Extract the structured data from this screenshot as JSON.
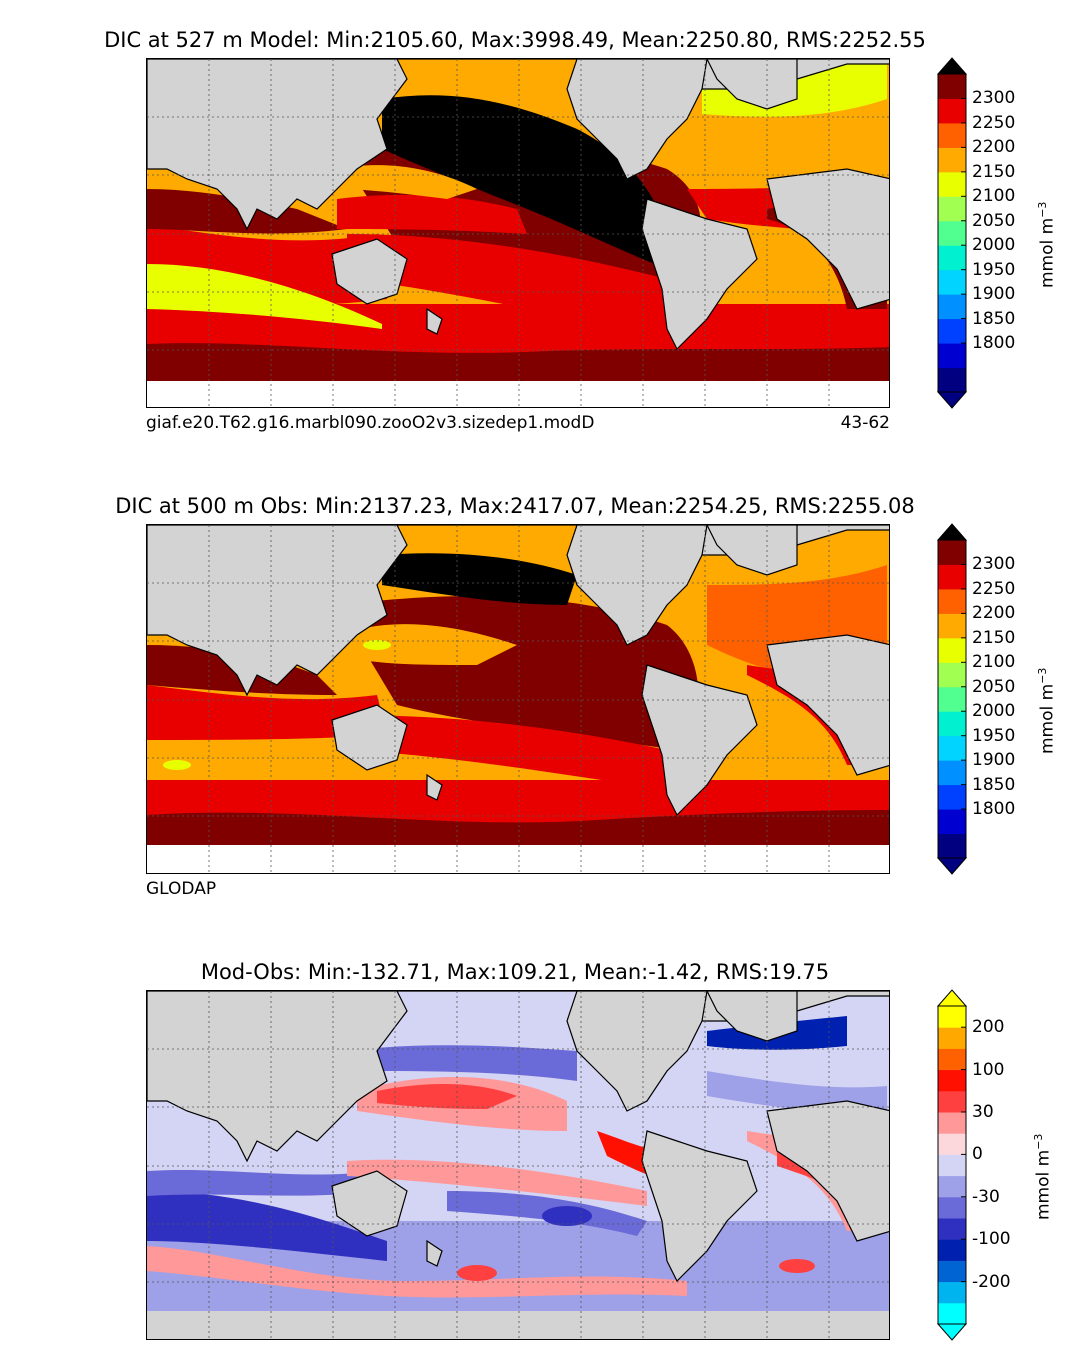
{
  "panels": [
    {
      "title": "DIC at 527 m Model: Min:2105.60, Max:3998.49, Mean:2250.80, RMS:2252.55",
      "caption_left": "giaf.e20.T62.g16.marbl090.zooO2v3.sizedep1.modD",
      "caption_right": "43-62"
    },
    {
      "title": "DIC at 500 m Obs: Min:2137.23, Max:2417.07, Mean:2254.25, RMS:2255.08",
      "caption_left": "GLODAP"
    },
    {
      "title": "Mod-Obs: Min:-132.71, Max:109.21, Mean:-1.42, RMS:19.75"
    }
  ],
  "colorbars": {
    "dic": {
      "label": "mmol m",
      "label_sup": "−3",
      "ticks": [
        "2300",
        "2250",
        "2200",
        "2150",
        "2100",
        "2050",
        "2000",
        "1950",
        "1900",
        "1850",
        "1800"
      ],
      "colors": [
        "#000080",
        "#0000d0",
        "#0040ff",
        "#0090ff",
        "#00d4ff",
        "#00f0d0",
        "#50ff90",
        "#a0ff50",
        "#e8ff00",
        "#ffaa00",
        "#ff6000",
        "#e80000",
        "#800000"
      ],
      "extend_low": "#000080",
      "extend_high": "#000000"
    },
    "diff": {
      "label": "mmol m",
      "label_sup": "−3",
      "ticks": [
        "200",
        "100",
        "30",
        "0",
        "-30",
        "-100",
        "-200"
      ],
      "colors": [
        "#00ffff",
        "#00b4f0",
        "#0064d2",
        "#0020b0",
        "#3030c0",
        "#6a6ad8",
        "#9ea0e8",
        "#d4d4f4",
        "#fcd8dc",
        "#ff9898",
        "#ff4040",
        "#ff1000",
        "#ff6000",
        "#ffa800",
        "#ffff00"
      ],
      "extend_low": "#00ffff",
      "extend_high": "#ffff00"
    }
  },
  "colors": {
    "land": "#d3d3d3",
    "coast": "#000000",
    "grid": "#555555"
  }
}
